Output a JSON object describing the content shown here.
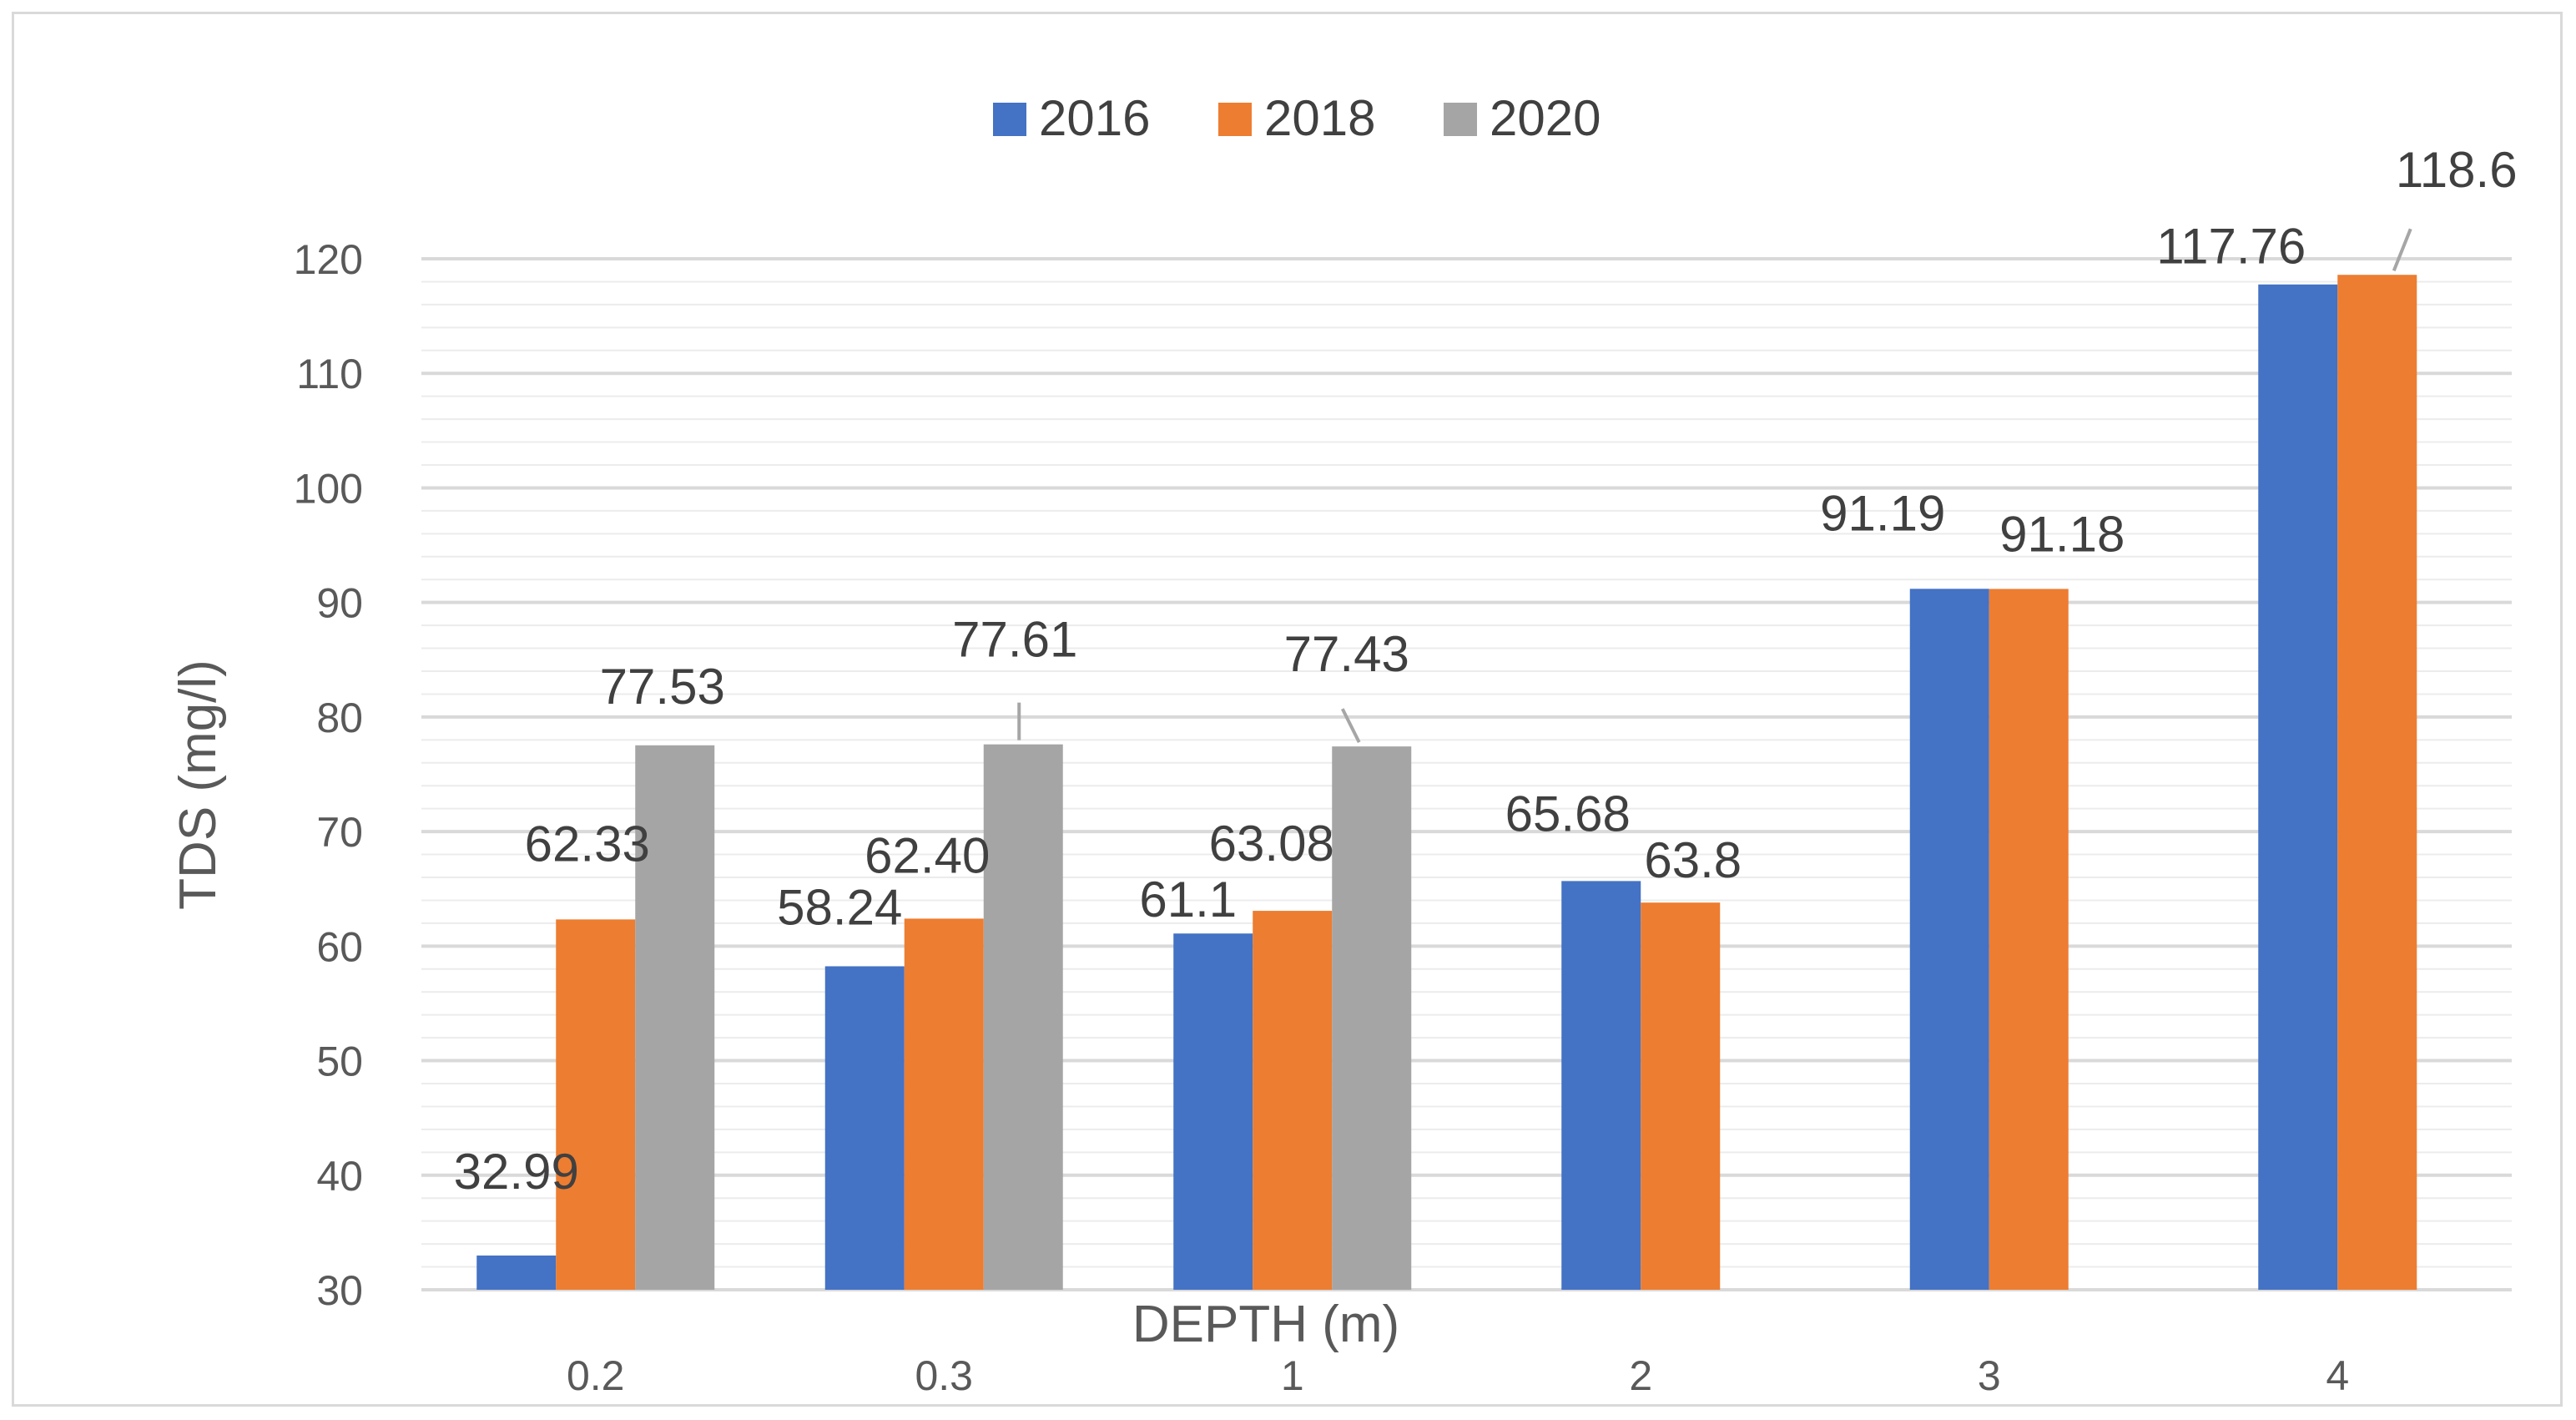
{
  "chart_data": {
    "type": "bar",
    "title": "",
    "xlabel": "DEPTH (m)",
    "ylabel": "TDS (mg/l)",
    "ylim": [
      30,
      120
    ],
    "ytick_step": 10,
    "grid": true,
    "legend_position": "top-center",
    "categories": [
      "0.2",
      "0.3",
      "1",
      "2",
      "3",
      "4"
    ],
    "series": [
      {
        "name": "2016",
        "color": "#4472c4",
        "values": [
          32.99,
          58.24,
          61.1,
          65.68,
          91.19,
          117.76
        ],
        "labels": [
          "32.99",
          "58.24",
          "61.1",
          "65.68",
          "91.19",
          "117.76"
        ]
      },
      {
        "name": "2018",
        "color": "#ed7d31",
        "values": [
          62.33,
          62.4,
          63.08,
          63.8,
          91.18,
          118.6
        ],
        "labels": [
          "62.33",
          "62.40",
          "63.08",
          "63.8",
          "91.18",
          "118.6"
        ]
      },
      {
        "name": "2020",
        "color": "#a5a5a5",
        "values": [
          77.53,
          77.61,
          77.43,
          null,
          null,
          null
        ],
        "labels": [
          "77.53",
          "77.61",
          "77.43",
          null,
          null,
          null
        ]
      }
    ]
  }
}
